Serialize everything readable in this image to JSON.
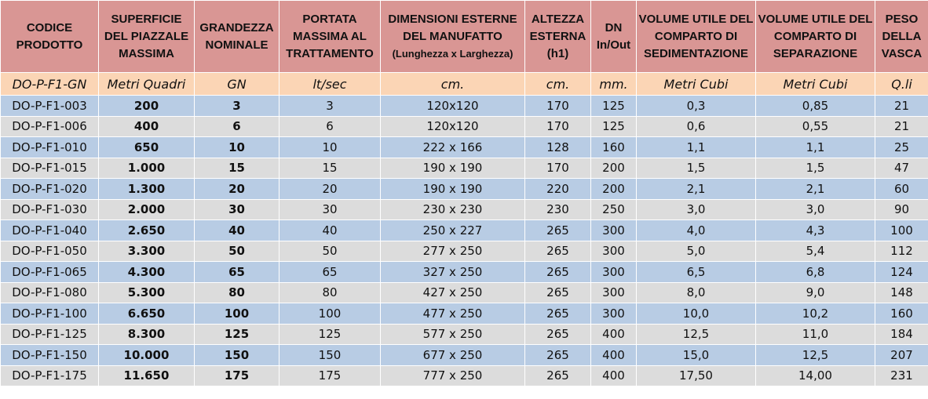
{
  "table": {
    "header": [
      "CODICE PRODOTTO",
      "SUPERFICIE DEL PIAZZALE MASSIMA",
      "GRANDEZZA NOMINALE",
      "PORTATA MASSIMA AL TRATTAMENTO",
      "DIMENSIONI ESTERNE DEL MANUFATTO",
      "ALTEZZA ESTERNA (h1)",
      "DN In/Out",
      "VOLUME UTILE DEL COMPARTO DI SEDIMENTAZIONE",
      "VOLUME UTILE DEL COMPARTO DI SEPARAZIONE",
      "PESO DELLA VASCA"
    ],
    "header_note": "(Lunghezza x Larghezza)",
    "units": [
      "DO-P-F1-GN",
      "Metri Quadri",
      "GN",
      "lt/sec",
      "cm.",
      "cm.",
      "mm.",
      "Metri Cubi",
      "Metri Cubi",
      "Q.li"
    ],
    "rows": [
      [
        "DO-P-F1-003",
        "200",
        "3",
        "3",
        "120x120",
        "170",
        "125",
        "0,3",
        "0,85",
        "21"
      ],
      [
        "DO-P-F1-006",
        "400",
        "6",
        "6",
        "120x120",
        "170",
        "125",
        "0,6",
        "0,55",
        "21"
      ],
      [
        "DO-P-F1-010",
        "650",
        "10",
        "10",
        "222 x 166",
        "128",
        "160",
        "1,1",
        "1,1",
        "25"
      ],
      [
        "DO-P-F1-015",
        "1.000",
        "15",
        "15",
        "190 x 190",
        "170",
        "200",
        "1,5",
        "1,5",
        "47"
      ],
      [
        "DO-P-F1-020",
        "1.300",
        "20",
        "20",
        "190 x 190",
        "220",
        "200",
        "2,1",
        "2,1",
        "60"
      ],
      [
        "DO-P-F1-030",
        "2.000",
        "30",
        "30",
        "230 x 230",
        "230",
        "250",
        "3,0",
        "3,0",
        "90"
      ],
      [
        "DO-P-F1-040",
        "2.650",
        "40",
        "40",
        "250 x 227",
        "265",
        "300",
        "4,0",
        "4,3",
        "100"
      ],
      [
        "DO-P-F1-050",
        "3.300",
        "50",
        "50",
        "277 x 250",
        "265",
        "300",
        "5,0",
        "5,4",
        "112"
      ],
      [
        "DO-P-F1-065",
        "4.300",
        "65",
        "65",
        "327 x 250",
        "265",
        "300",
        "6,5",
        "6,8",
        "124"
      ],
      [
        "DO-P-F1-080",
        "5.300",
        "80",
        "80",
        "427 x 250",
        "265",
        "300",
        "8,0",
        "9,0",
        "148"
      ],
      [
        "DO-P-F1-100",
        "6.650",
        "100",
        "100",
        "477 x 250",
        "265",
        "300",
        "10,0",
        "10,2",
        "160"
      ],
      [
        "DO-P-F1-125",
        "8.300",
        "125",
        "125",
        "577 x 250",
        "265",
        "400",
        "12,5",
        "11,0",
        "184"
      ],
      [
        "DO-P-F1-150",
        "10.000",
        "150",
        "150",
        "677 x 250",
        "265",
        "400",
        "15,0",
        "12,5",
        "207"
      ],
      [
        "DO-P-F1-175",
        "11.650",
        "175",
        "175",
        "777 x 250",
        "265",
        "400",
        "17,50",
        "14,00",
        "231"
      ]
    ]
  }
}
